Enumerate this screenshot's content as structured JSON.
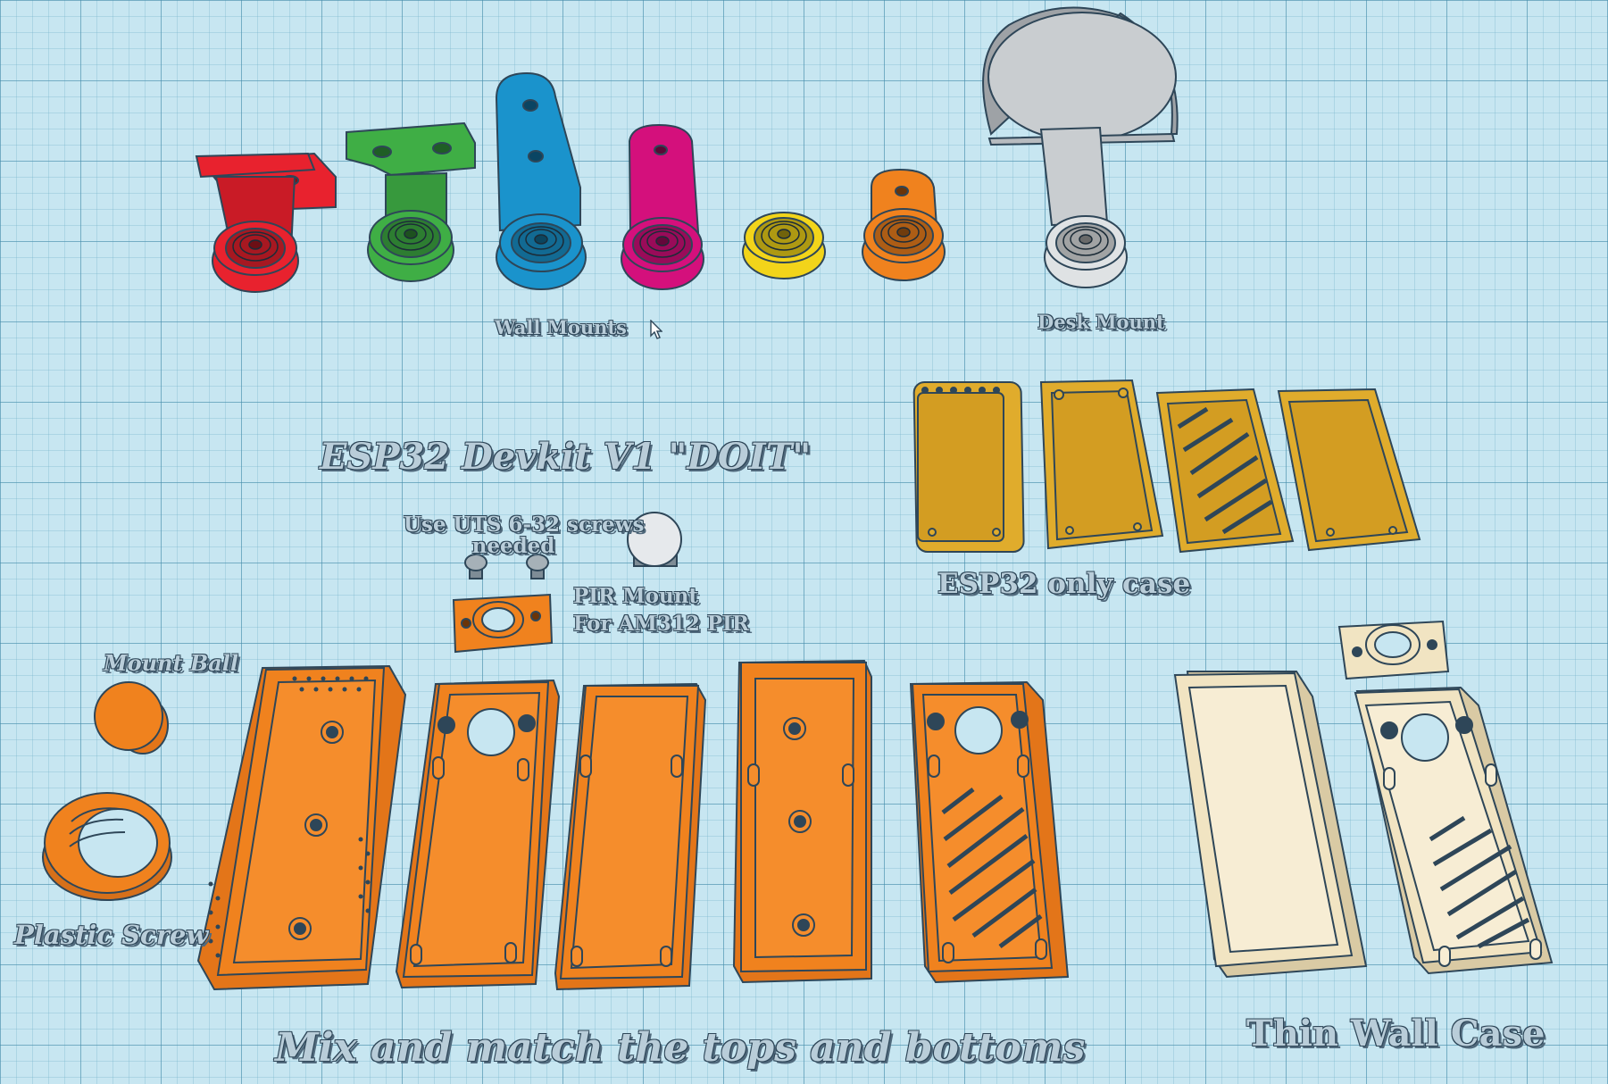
{
  "labels": {
    "wall_mounts": "Wall Mounts",
    "desk_mount": "Desk Mount",
    "esp32_devkit": "ESP32 Devkit V1 \"DOIT\"",
    "screws_line1": "Use UTS 6-32 screws",
    "screws_line2": "needed",
    "pir_line1": "PIR Mount",
    "pir_line2": "For AM312 PIR",
    "esp32_only_case": "ESP32 only case",
    "mount_ball": "Mount Ball",
    "plastic_screw": "Plastic Screw",
    "mix_match": "Mix and match the tops and bottoms",
    "thin_wall_case": "Thin Wall Case"
  },
  "colors": {
    "red": "#e8222e",
    "green": "#3fae45",
    "blue": "#1a93cc",
    "magenta": "#d4107c",
    "yellow": "#f2d41a",
    "orange": "#f0821e",
    "gray": "#c9cdd0",
    "gold": "#e0ac2c",
    "cream": "#f1e4c2",
    "grid_bg": "#c7e6f1",
    "outline": "#2e4658"
  },
  "icons": {
    "cursor": "mouse-pointer-icon"
  }
}
